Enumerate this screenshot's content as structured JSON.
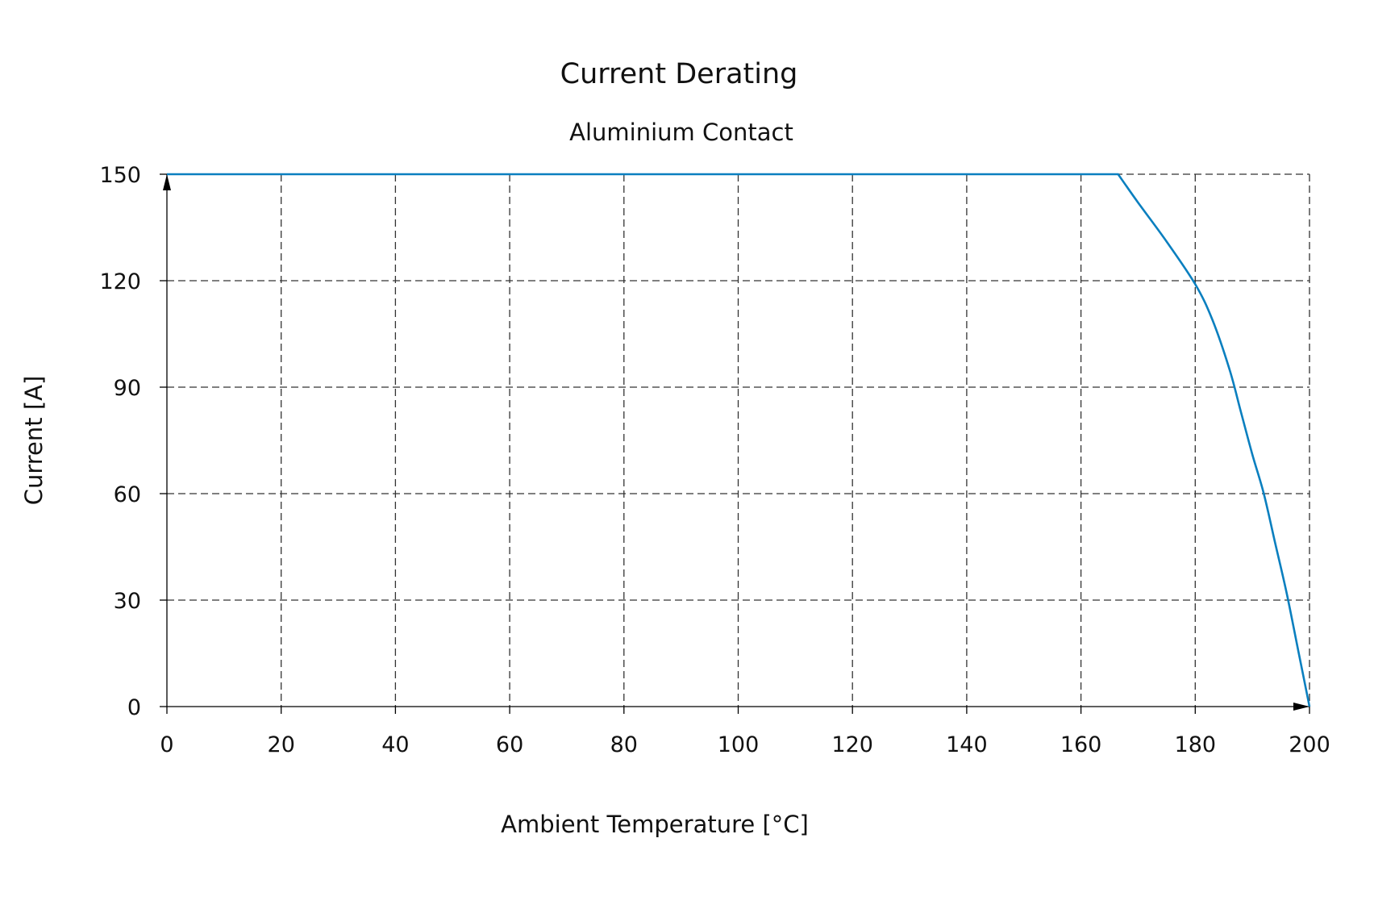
{
  "chart_data": {
    "type": "line",
    "title": "Current Derating",
    "subtitle": "Aluminium Contact",
    "xlabel": "Ambient Temperature [°C]",
    "ylabel": "Current [A]",
    "xlim": [
      0,
      200
    ],
    "ylim": [
      0,
      150
    ],
    "xticks": [
      "0",
      "20",
      "40",
      "60",
      "80",
      "100",
      "120",
      "140",
      "160",
      "180",
      "200"
    ],
    "yticks": [
      "0",
      "30",
      "60",
      "90",
      "120",
      "150"
    ],
    "grid": true,
    "line_color": "#0a7fbf",
    "series": [
      {
        "x": [
          0,
          166.5,
          170,
          175,
          180,
          183,
          186,
          188,
          190,
          192,
          194,
          196,
          198,
          200
        ],
        "y": [
          150,
          150,
          142,
          131,
          119,
          109,
          95,
          83,
          71,
          60,
          46,
          32,
          16,
          0
        ]
      }
    ]
  }
}
